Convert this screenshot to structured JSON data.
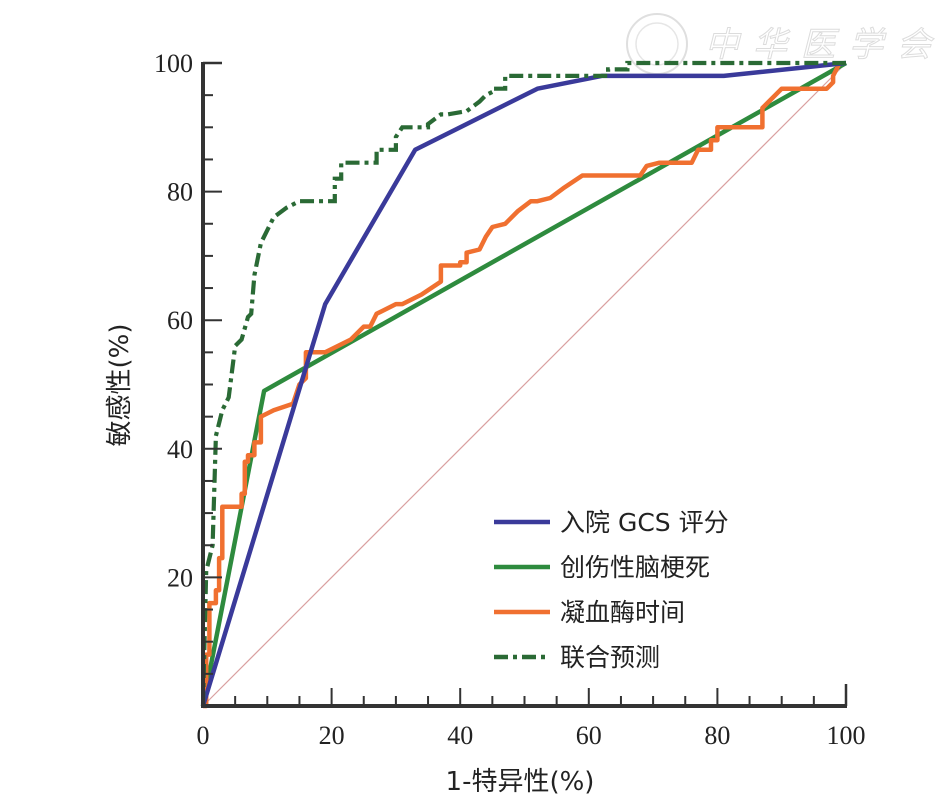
{
  "chart_data": {
    "type": "line",
    "title": "",
    "xlabel": "1-特异性(%)",
    "ylabel": "敏感性(%)",
    "xlim": [
      0,
      100
    ],
    "ylim": [
      0,
      100
    ],
    "x_ticks": [
      "0",
      "20",
      "40",
      "60",
      "80",
      "100"
    ],
    "y_ticks": [
      "20",
      "40",
      "60",
      "80",
      "100"
    ],
    "x_tick_values": [
      0,
      20,
      40,
      60,
      80,
      100
    ],
    "y_tick_values": [
      20,
      40,
      60,
      80,
      100
    ],
    "minor_tick_step": 5,
    "grid": false,
    "legend_position": "bottom-right",
    "reference_line": {
      "name": "参考线",
      "x": [
        0,
        100
      ],
      "y": [
        0,
        100
      ],
      "color": "#d9a0a0"
    },
    "series": [
      {
        "name": "入院GCS评分",
        "legend_label": "入院 GCS 评分",
        "color": "#3a3a9a",
        "style": "solid",
        "x": [
          0,
          19,
          33,
          52,
          62,
          81,
          100
        ],
        "y": [
          0,
          62.5,
          86.5,
          96,
          98,
          98,
          100
        ]
      },
      {
        "name": "创伤性脑梗死",
        "legend_label": "创伤性脑梗死",
        "color": "#2e8b3e",
        "style": "solid",
        "x": [
          0,
          9.5,
          100
        ],
        "y": [
          0,
          49,
          100
        ]
      },
      {
        "name": "凝血酶时间",
        "legend_label": "凝血酶时间",
        "color": "#f07030",
        "style": "solid",
        "x": [
          0,
          0.5,
          0.5,
          1,
          1,
          2,
          2,
          2.5,
          2.5,
          3,
          3,
          6,
          6,
          6.5,
          6.5,
          7,
          7,
          8,
          8,
          9,
          9,
          11,
          14,
          15,
          16,
          16,
          17,
          19,
          23,
          25,
          26,
          27,
          30,
          31,
          34,
          37,
          37,
          40,
          40,
          41,
          41,
          43,
          44,
          45,
          47,
          49,
          51,
          52,
          54,
          56,
          59,
          60,
          68,
          69,
          71,
          73,
          76,
          77,
          77,
          79,
          79,
          80,
          80,
          83,
          87,
          87,
          88,
          90,
          95,
          97,
          98,
          98,
          99
        ],
        "y": [
          0,
          0,
          8,
          8,
          16,
          16,
          18,
          18,
          23,
          23,
          31,
          31,
          33,
          33,
          38,
          38,
          39,
          39,
          41,
          41,
          45,
          46,
          47,
          50,
          51,
          55,
          55,
          55,
          57,
          59,
          59,
          61,
          62.5,
          62.5,
          64,
          66,
          68.5,
          68.5,
          69,
          69,
          70.5,
          71,
          73,
          74.5,
          75,
          77,
          78.5,
          78.5,
          79,
          80.5,
          82.5,
          82.5,
          82.5,
          84,
          84.5,
          84.5,
          84.5,
          86.5,
          86.5,
          86.5,
          88,
          88,
          90,
          90,
          90,
          93,
          94,
          96,
          96,
          96,
          97,
          98,
          100
        ]
      },
      {
        "name": "联合预测",
        "legend_label": "联合预测",
        "color": "#2a6a35",
        "style": "dashdot",
        "x": [
          0,
          0.5,
          0.5,
          1.5,
          1.5,
          2,
          2,
          2.5,
          2.5,
          3,
          3,
          4,
          4,
          5,
          5,
          6,
          6,
          7,
          7,
          7.5,
          7.5,
          8,
          8,
          9,
          9,
          10,
          11,
          13,
          15,
          20.5,
          20.5,
          21.5,
          21.5,
          26,
          27,
          27,
          30,
          30,
          31,
          35,
          35,
          37,
          38,
          41,
          43,
          44,
          45,
          45,
          47,
          47,
          50,
          63,
          63,
          66,
          66,
          100
        ],
        "y": [
          0,
          21,
          21,
          25,
          25,
          42,
          42,
          44,
          44,
          46,
          46,
          48,
          48,
          56,
          56,
          57,
          57,
          60.5,
          60.5,
          61,
          61,
          67,
          67,
          72,
          72,
          74,
          76,
          77.5,
          78.5,
          78.5,
          82,
          82,
          84.5,
          84.5,
          84.5,
          86.5,
          86.5,
          88.5,
          90,
          90,
          90.5,
          92,
          92,
          92.5,
          94,
          95,
          95.5,
          96,
          96,
          98,
          98,
          98,
          99,
          99,
          100,
          100
        ]
      }
    ]
  },
  "watermark": "中华医学会"
}
